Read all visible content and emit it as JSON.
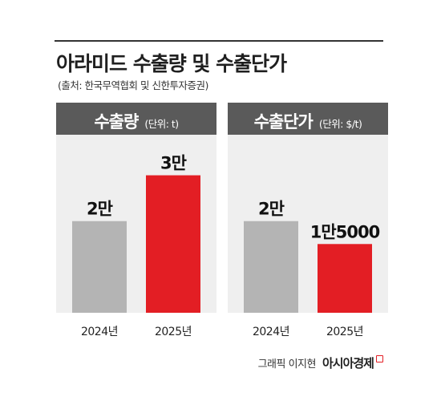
{
  "header": {
    "title": "아라미드 수출량 및 수출단가",
    "source": "(출처: 한국무역협회 및 신한투자증권)"
  },
  "credit": {
    "text": "그래픽 이지현",
    "brand": "아시아경제"
  },
  "colors": {
    "bar_2024": "#b4b4b4",
    "bar_2025": "#e31e24",
    "panel_bg": "#efefef",
    "header_bg": "#5a5a5a"
  },
  "chart_data": [
    {
      "type": "bar",
      "title": "수출량",
      "unit": "(단위: t)",
      "categories": [
        "2024년",
        "2025년"
      ],
      "values": [
        20000,
        30000
      ],
      "value_labels": [
        "2만",
        "3만"
      ],
      "ylim": [
        0,
        35000
      ],
      "grid": false
    },
    {
      "type": "bar",
      "title": "수출단가",
      "unit": "(단위: $/t)",
      "categories": [
        "2024년",
        "2025년"
      ],
      "values": [
        20000,
        15000
      ],
      "value_labels": [
        "2만",
        "1만5000"
      ],
      "ylim": [
        0,
        35000
      ],
      "grid": false
    }
  ]
}
